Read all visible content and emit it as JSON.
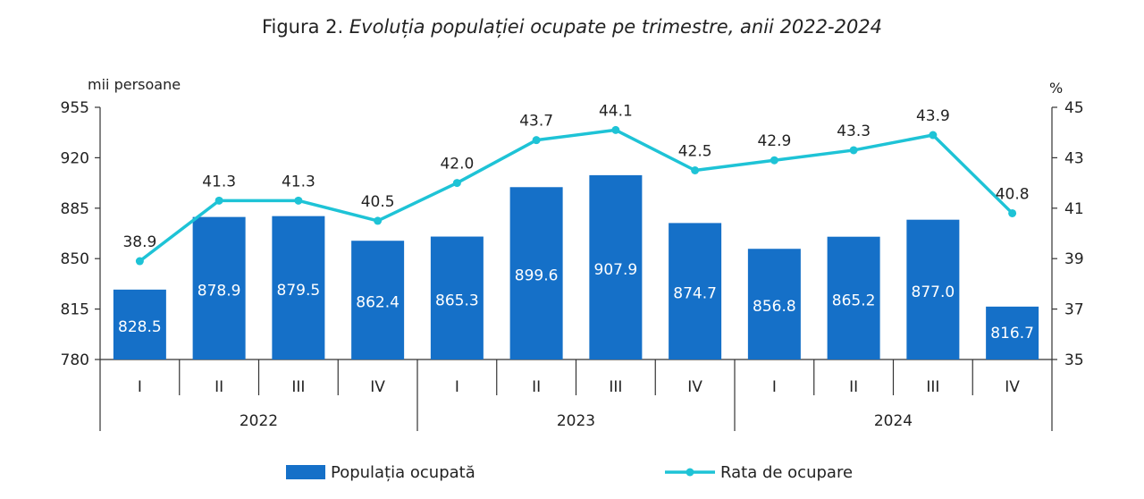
{
  "chart_data": {
    "type": "bar",
    "title_prefix": "Figura 2.",
    "title_main": "Evoluția populației ocupate pe trimestre, anii 2022-2024",
    "left_axis_unit": "mii persoane",
    "right_axis_unit": "%",
    "left_ylim": [
      780,
      955
    ],
    "left_ticks": [
      780,
      815,
      850,
      885,
      920,
      955
    ],
    "right_ylim": [
      35,
      45
    ],
    "right_ticks": [
      35,
      37,
      39,
      41,
      43,
      45
    ],
    "categories": [
      "I",
      "II",
      "III",
      "IV",
      "I",
      "II",
      "III",
      "IV",
      "I",
      "II",
      "III",
      "IV"
    ],
    "years": [
      {
        "label": "2022",
        "span": 4
      },
      {
        "label": "2023",
        "span": 4
      },
      {
        "label": "2024",
        "span": 4
      }
    ],
    "series": [
      {
        "name": "Populația ocupată",
        "type": "bar",
        "axis": "left",
        "color": "#1570C8",
        "values": [
          828.5,
          878.9,
          879.5,
          862.4,
          865.3,
          899.6,
          907.9,
          874.7,
          856.8,
          865.2,
          877.0,
          816.7
        ],
        "labels": [
          "828.5",
          "878.9",
          "879.5",
          "862.4",
          "865.3",
          "899.6",
          "907.9",
          "874.7",
          "856.8",
          "865.2",
          "877.0",
          "816.7"
        ]
      },
      {
        "name": "Rata de ocupare",
        "type": "line",
        "axis": "right",
        "color": "#1EC3D6",
        "values": [
          38.9,
          41.3,
          41.3,
          40.5,
          42.0,
          43.7,
          44.1,
          42.5,
          42.9,
          43.3,
          43.9,
          40.8
        ],
        "labels": [
          "38.9",
          "41.3",
          "41.3",
          "40.5",
          "42.0",
          "43.7",
          "44.1",
          "42.5",
          "42.9",
          "43.3",
          "43.9",
          "40.8"
        ]
      }
    ],
    "grid": false,
    "legend_position": "bottom"
  }
}
